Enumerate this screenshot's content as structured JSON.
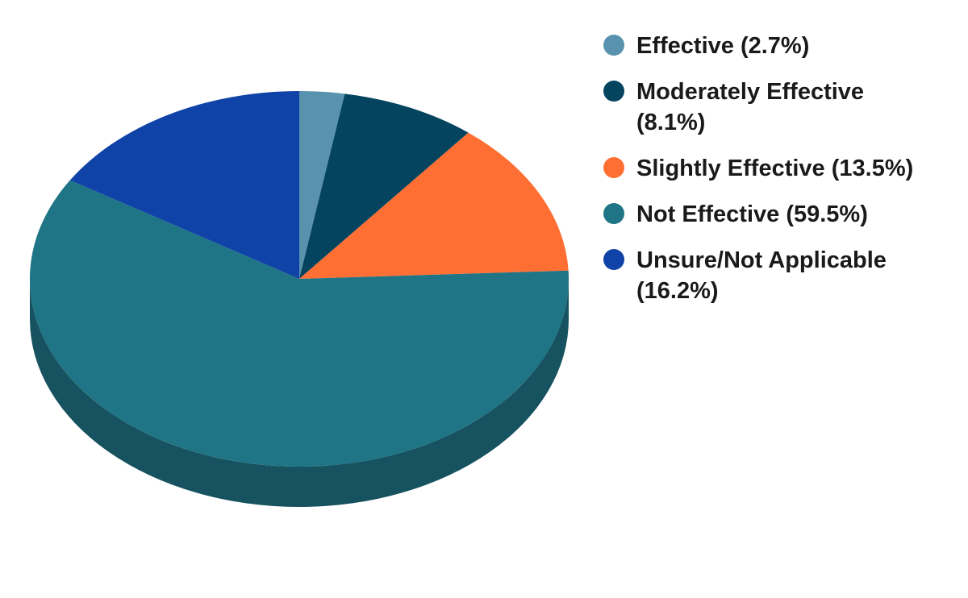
{
  "chart_data": {
    "type": "pie",
    "three_d": true,
    "legend_position": "right",
    "slices": [
      {
        "label": "Effective (2.7%)",
        "value": 2.7,
        "color": "#5892ae",
        "side_color": "#3f6e84"
      },
      {
        "label": "Moderately Effective (8.1%)",
        "value": 8.1,
        "color": "#04445f",
        "side_color": "#022f42"
      },
      {
        "label": "Slightly Effective (13.5%)",
        "value": 13.5,
        "color": "#ff6f33",
        "side_color": "#c4521f"
      },
      {
        "label": "Not Effective (59.5%)",
        "value": 59.5,
        "color": "#1f7585",
        "side_color": "#175260"
      },
      {
        "label": "Unsure/Not Applicable (16.2%)",
        "value": 16.2,
        "color": "#1043a8",
        "side_color": "#0b2f78"
      }
    ]
  }
}
